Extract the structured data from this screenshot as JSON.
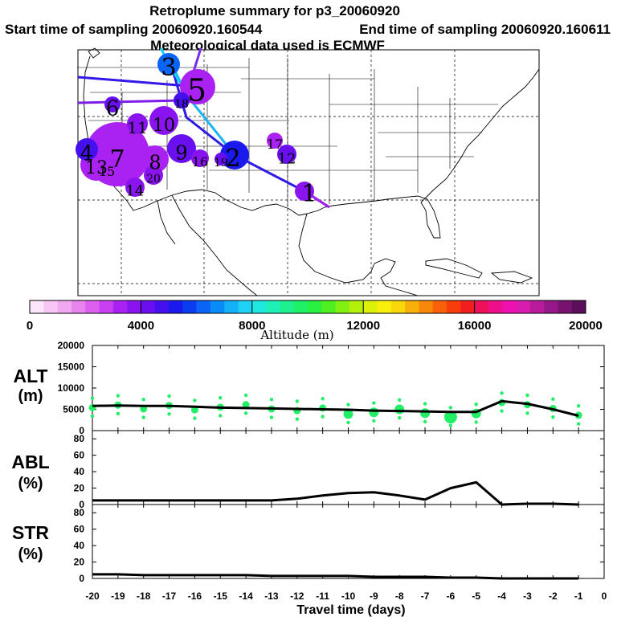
{
  "title": "Retroplume summary for p3_20060920",
  "subtitle_start": "Start time of sampling 20060920.160544",
  "subtitle_end": "End time of sampling 20060920.160611",
  "subtitle_met": "Meteorological data used is ECMWF",
  "colorbar": {
    "label": "Altitude (m)",
    "ticks": [
      "0",
      "4000",
      "8000",
      "12000",
      "16000",
      "20000"
    ],
    "colors": [
      "#fce6fc",
      "#f7c6f7",
      "#f0a8f0",
      "#e884ee",
      "#dd5ff0",
      "#c840f2",
      "#aa22f2",
      "#8a14f0",
      "#6a10f0",
      "#4410ee",
      "#1a1aee",
      "#0c3cf2",
      "#0a64f5",
      "#0a8cf8",
      "#14b0f8",
      "#1ed2f5",
      "#1ee8e0",
      "#1ef0b8",
      "#1ef090",
      "#1ef068",
      "#28f040",
      "#50f020",
      "#82f010",
      "#b4f00a",
      "#dcf00a",
      "#f8f00a",
      "#f8d80a",
      "#f8b00a",
      "#f8880a",
      "#f8600a",
      "#f83c0c",
      "#f01e1e",
      "#ee105a",
      "#ee108a",
      "#ee10b0",
      "#d81cb0",
      "#b81c9c",
      "#961888",
      "#781470",
      "#5c0e5a"
    ]
  },
  "map": {
    "plume_points": [
      {
        "label": "1",
        "alt": 3500
      },
      {
        "label": "2",
        "alt": 5300
      },
      {
        "label": "3",
        "alt": 6400
      },
      {
        "label": "4",
        "alt": 4600
      },
      {
        "label": "5",
        "alt": 3000
      },
      {
        "label": "6",
        "alt": 4400
      },
      {
        "label": "7",
        "alt": 3000
      },
      {
        "label": "8",
        "alt": 3200
      },
      {
        "label": "9",
        "alt": 4200
      },
      {
        "label": "10",
        "alt": 3600
      },
      {
        "label": "11",
        "alt": 3800
      },
      {
        "label": "12",
        "alt": 4300
      },
      {
        "label": "13",
        "alt": 3400
      },
      {
        "label": "14",
        "alt": 3500
      },
      {
        "label": "15",
        "alt": 3300
      },
      {
        "label": "16",
        "alt": 3700
      },
      {
        "label": "17",
        "alt": 3100
      },
      {
        "label": "18",
        "alt": 4700
      },
      {
        "label": "19",
        "alt": 4100
      },
      {
        "label": "20",
        "alt": 3700
      }
    ]
  },
  "chart_data": [
    {
      "type": "line",
      "panel": "ALT",
      "title": "ALT",
      "ylabel": "(m)",
      "ylim": [
        0,
        20000
      ],
      "yticks": [
        "0",
        "5000",
        "10000",
        "15000",
        "20000"
      ],
      "x": [
        -20,
        -19,
        -18,
        -17,
        -16,
        -15,
        -14,
        -13,
        -12,
        -11,
        -10,
        -9,
        -8,
        -7,
        -6,
        -5,
        -4,
        -3,
        -2,
        -1
      ],
      "values": [
        5800,
        5900,
        5800,
        5800,
        5600,
        5400,
        5300,
        5200,
        5100,
        5000,
        4900,
        4700,
        4600,
        4500,
        4400,
        4400,
        6900,
        6300,
        5000,
        3500
      ],
      "dot_series": [
        5400,
        6000,
        5100,
        5900,
        4900,
        5500,
        6100,
        5100,
        4700,
        5300,
        3900,
        4300,
        5000,
        4100,
        3200,
        4000,
        6600,
        6100,
        5200,
        3600
      ]
    },
    {
      "type": "line",
      "panel": "ABL",
      "title": "ABL",
      "ylabel": "(%)",
      "ylim": [
        0,
        90
      ],
      "yticks": [
        "0",
        "20",
        "40",
        "60",
        "80"
      ],
      "x": [
        -20,
        -19,
        -18,
        -17,
        -16,
        -15,
        -14,
        -13,
        -12,
        -11,
        -10,
        -9,
        -8,
        -7,
        -6,
        -5,
        -4,
        -3,
        -2,
        -1
      ],
      "values": [
        5,
        5,
        5,
        5,
        5,
        5,
        5,
        5,
        7,
        11,
        14,
        15,
        11,
        6,
        20,
        27,
        0,
        1,
        1,
        0
      ]
    },
    {
      "type": "line",
      "panel": "STR",
      "title": "STR",
      "ylabel": "(%)",
      "ylim": [
        0,
        90
      ],
      "yticks": [
        "0",
        "20",
        "40",
        "60",
        "80"
      ],
      "x": [
        -20,
        -19,
        -18,
        -17,
        -16,
        -15,
        -14,
        -13,
        -12,
        -11,
        -10,
        -9,
        -8,
        -7,
        -6,
        -5,
        -4,
        -3,
        -2,
        -1
      ],
      "values": [
        5,
        5,
        4,
        4,
        4,
        4,
        4,
        3,
        3,
        3,
        3,
        2,
        2,
        2,
        1,
        1,
        0,
        0,
        0,
        0
      ]
    }
  ],
  "xaxis": {
    "label": "Travel time (days)",
    "ticks": [
      "-20",
      "-19",
      "-18",
      "-17",
      "-16",
      "-15",
      "-14",
      "-13",
      "-12",
      "-11",
      "-10",
      "-9",
      "-8",
      "-7",
      "-6",
      "-5",
      "-4",
      "-3",
      "-2",
      "-1",
      "0"
    ]
  }
}
